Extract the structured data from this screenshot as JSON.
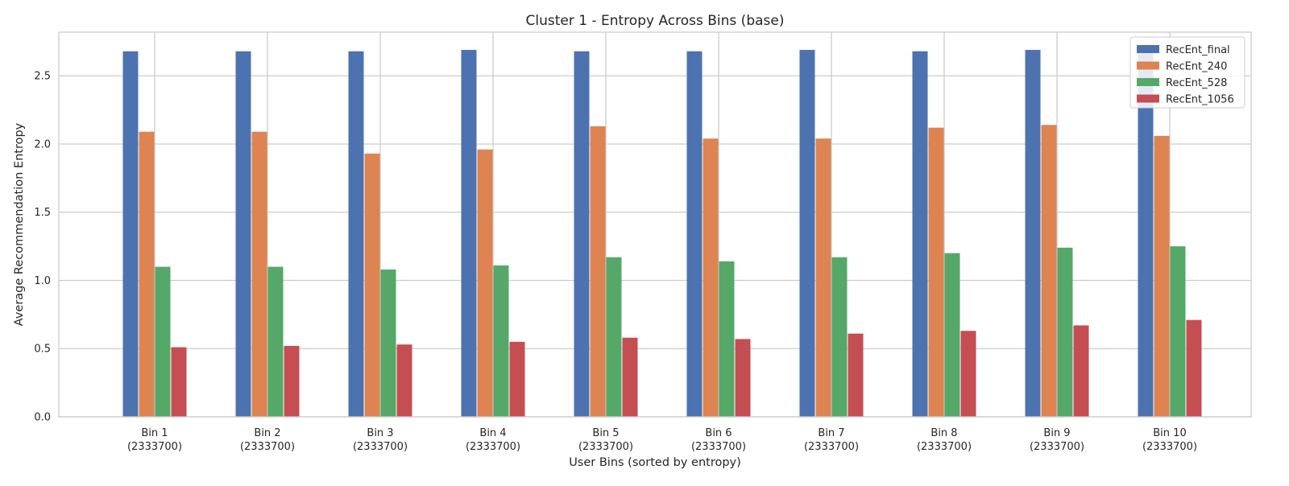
{
  "chart_data": {
    "type": "bar",
    "title": "Cluster 1 - Entropy Across Bins (base)",
    "xlabel": "User Bins (sorted by entropy)",
    "ylabel": "Average Recommendation Entropy",
    "categories": [
      [
        "Bin 1",
        "(2333700)"
      ],
      [
        "Bin 2",
        "(2333700)"
      ],
      [
        "Bin 3",
        "(2333700)"
      ],
      [
        "Bin 4",
        "(2333700)"
      ],
      [
        "Bin 5",
        "(2333700)"
      ],
      [
        "Bin 6",
        "(2333700)"
      ],
      [
        "Bin 7",
        "(2333700)"
      ],
      [
        "Bin 8",
        "(2333700)"
      ],
      [
        "Bin 9",
        "(2333700)"
      ],
      [
        "Bin 10",
        "(2333700)"
      ]
    ],
    "series": [
      {
        "name": "RecEnt_final",
        "color": "#4c72b0",
        "values": [
          2.68,
          2.68,
          2.68,
          2.69,
          2.68,
          2.68,
          2.69,
          2.68,
          2.69,
          2.69
        ]
      },
      {
        "name": "RecEnt_240",
        "color": "#dd8452",
        "values": [
          2.09,
          2.09,
          1.93,
          1.96,
          2.13,
          2.04,
          2.04,
          2.12,
          2.14,
          2.06
        ]
      },
      {
        "name": "RecEnt_528",
        "color": "#55a868",
        "values": [
          1.1,
          1.1,
          1.08,
          1.11,
          1.17,
          1.14,
          1.17,
          1.2,
          1.24,
          1.25
        ]
      },
      {
        "name": "RecEnt_1056",
        "color": "#c44e52",
        "values": [
          0.51,
          0.52,
          0.53,
          0.55,
          0.58,
          0.57,
          0.61,
          0.63,
          0.67,
          0.71
        ]
      }
    ],
    "yticks": [
      0.0,
      0.5,
      1.0,
      1.5,
      2.0,
      2.5
    ],
    "ytick_labels": [
      "0.0",
      "0.5",
      "1.0",
      "1.5",
      "2.0",
      "2.5"
    ],
    "ylim": [
      0,
      2.82
    ],
    "grid": true,
    "legend_position": "top-right"
  }
}
